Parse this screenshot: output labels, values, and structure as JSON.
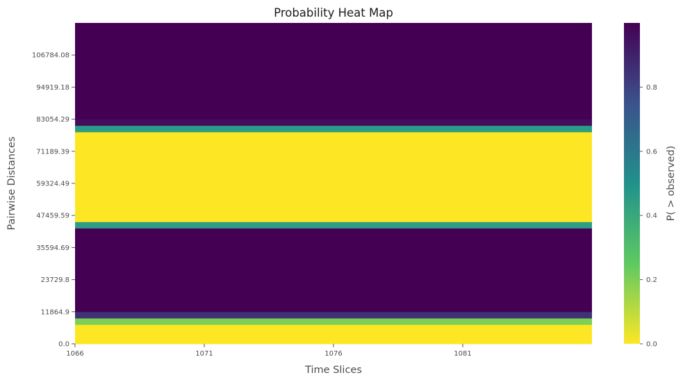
{
  "chart_data": {
    "type": "heatmap",
    "title": "Probability Heat Map",
    "xlabel": "Time Slices",
    "ylabel": "Pairwise Distances",
    "colorbar_label": "P( > observed)",
    "colormap": "viridis_r",
    "x_range": [
      1066,
      1086
    ],
    "y_range": [
      0,
      118649
    ],
    "x_ticks": [
      1066,
      1071,
      1076,
      1081
    ],
    "x_tick_labels": [
      "1066",
      "1071",
      "1076",
      "1081"
    ],
    "y_ticks": [
      0,
      11864.9,
      23729.8,
      35594.69,
      47459.59,
      59324.49,
      71189.39,
      83054.29,
      94919.18,
      106784.08
    ],
    "y_tick_labels": [
      "0.0",
      "11864.9",
      "23729.8",
      "35594.69",
      "47459.59",
      "59324.49",
      "71189.39",
      "83054.29",
      "94919.18",
      "106784.08"
    ],
    "colorbar_range": [
      0,
      1
    ],
    "colorbar_ticks": [
      0.0,
      0.2,
      0.4,
      0.6,
      0.8
    ],
    "colorbar_tick_labels": [
      "0.0",
      "0.2",
      "0.4",
      "0.6",
      "0.8"
    ],
    "rows": [
      {
        "y_from": 0,
        "y_to": 7130,
        "value": 0.0
      },
      {
        "y_from": 7130,
        "y_to": 9510,
        "value": 0.2
      },
      {
        "y_from": 9510,
        "y_to": 11880,
        "value": 0.85
      },
      {
        "y_from": 11880,
        "y_to": 42770,
        "value": 1.0
      },
      {
        "y_from": 42770,
        "y_to": 45130,
        "value": 0.45
      },
      {
        "y_from": 45130,
        "y_to": 78350,
        "value": 0.0
      },
      {
        "y_from": 78350,
        "y_to": 80730,
        "value": 0.45
      },
      {
        "y_from": 80730,
        "y_to": 83100,
        "value": 0.96
      },
      {
        "y_from": 83100,
        "y_to": 118649,
        "value": 1.0
      }
    ]
  }
}
